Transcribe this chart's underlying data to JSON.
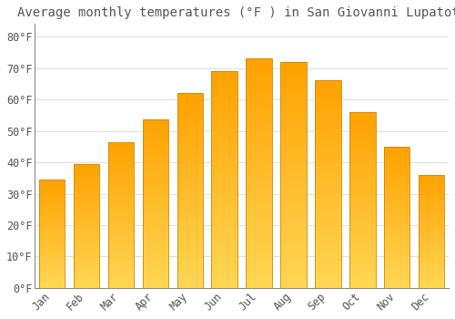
{
  "title": "Average monthly temperatures (°F ) in San Giovanni Lupatoto",
  "months": [
    "Jan",
    "Feb",
    "Mar",
    "Apr",
    "May",
    "Jun",
    "Jul",
    "Aug",
    "Sep",
    "Oct",
    "Nov",
    "Dec"
  ],
  "values": [
    34.5,
    39.5,
    46.5,
    53.5,
    62.0,
    69.0,
    73.0,
    72.0,
    66.0,
    56.0,
    45.0,
    36.0
  ],
  "bar_color_bottom": "#FFD555",
  "bar_color_top": "#FFA000",
  "bar_edge_color": "#CC8800",
  "background_color": "#FFFFFF",
  "grid_color": "#DDDDDD",
  "text_color": "#555555",
  "ylim": [
    0,
    84
  ],
  "yticks": [
    0,
    10,
    20,
    30,
    40,
    50,
    60,
    70,
    80
  ],
  "title_fontsize": 10,
  "tick_fontsize": 8.5
}
